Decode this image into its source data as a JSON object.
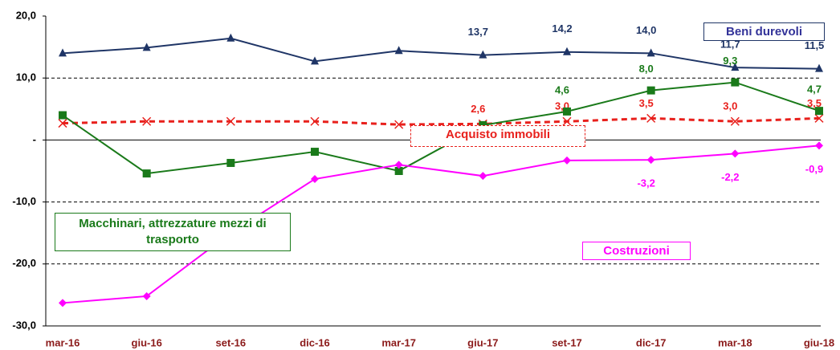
{
  "chart_data": {
    "type": "line",
    "categories": [
      "mar-16",
      "giu-16",
      "set-16",
      "dic-16",
      "mar-17",
      "giu-17",
      "set-17",
      "dic-17",
      "mar-18",
      "giu-18"
    ],
    "ylim": [
      -30,
      20
    ],
    "yticks": [
      {
        "value": 20,
        "label": "20,0"
      },
      {
        "value": 10,
        "label": "10,0"
      },
      {
        "value": 0,
        "label": "-"
      },
      {
        "value": -10,
        "label": "-10,0"
      },
      {
        "value": -20,
        "label": "-20,0"
      },
      {
        "value": -30,
        "label": "-30,0"
      }
    ],
    "grid": true,
    "series": [
      {
        "name": "Beni durevoli",
        "color": "#1f3566",
        "marker": "triangle",
        "values": [
          14.0,
          14.9,
          16.4,
          12.7,
          14.4,
          13.7,
          14.2,
          14.0,
          11.7,
          11.5
        ],
        "value_labels": [
          null,
          null,
          null,
          null,
          null,
          "13,7",
          "14,2",
          "14,0",
          "11,7",
          "11,5"
        ]
      },
      {
        "name": "Acquisto immobili",
        "color": "#e8201c",
        "marker": "cross",
        "dashed": true,
        "values": [
          2.7,
          3.0,
          3.0,
          3.0,
          2.5,
          2.6,
          3.0,
          3.5,
          3.0,
          3.5
        ],
        "value_labels": [
          null,
          null,
          null,
          null,
          null,
          "2,6",
          "3,0",
          "3,5",
          "3,0",
          "3,5"
        ]
      },
      {
        "name": "Macchinari, attrezzature mezzi di trasporto",
        "color": "#1a7a1a",
        "marker": "square",
        "values": [
          4.0,
          -5.4,
          -3.7,
          -1.9,
          -5.0,
          2.4,
          4.6,
          8.0,
          9.3,
          4.7
        ],
        "value_labels": [
          null,
          null,
          null,
          null,
          null,
          null,
          "4,6",
          "8,0",
          "9,3",
          "4,7"
        ]
      },
      {
        "name": "Costruzioni",
        "color": "#ff00ff",
        "marker": "diamond",
        "values": [
          -26.3,
          -25.2,
          -15.0,
          -6.3,
          -4.0,
          -5.8,
          -3.3,
          -3.2,
          -2.2,
          -0.9
        ],
        "value_labels": [
          null,
          null,
          null,
          null,
          null,
          null,
          null,
          "-3,2",
          "-2,2",
          "-0,9"
        ]
      }
    ]
  }
}
